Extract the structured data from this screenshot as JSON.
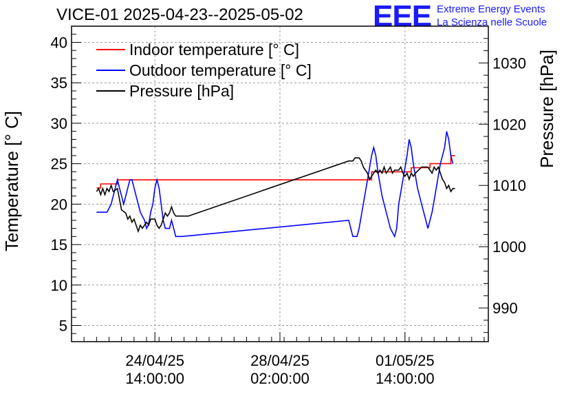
{
  "chart_data": {
    "type": "line",
    "title": "VICE-01 2025-04-23--2025-05-02",
    "logo": {
      "mark": "EEE",
      "line1": "Extreme Energy Events",
      "line2": "La Scienza nelle Scuole"
    },
    "ylabel_left": "Temperature [° C]",
    "ylabel_right": "Pressure [hPa]",
    "ylim_left": [
      3,
      42
    ],
    "ylim_right": [
      984.5,
      1036
    ],
    "xlim_hours": [
      0,
      200
    ],
    "grid": true,
    "legend_position": "top-left",
    "left_ticks": [
      5,
      10,
      15,
      20,
      25,
      30,
      35,
      40
    ],
    "right_ticks": [
      990,
      1000,
      1010,
      1020,
      1030
    ],
    "x_ticks": [
      {
        "hour": 40,
        "line1": "24/04/25",
        "line2": "14:00:00"
      },
      {
        "hour": 100,
        "line1": "28/04/25",
        "line2": "02:00:00"
      },
      {
        "hour": 160,
        "line1": "01/05/25",
        "line2": "14:00:00"
      }
    ],
    "colors": {
      "indoor": "#ff0000",
      "outdoor": "#0000ff",
      "pressure": "#000000",
      "grid": "#999999"
    },
    "series": [
      {
        "name": "Indoor temperature [° C]",
        "axis": "left",
        "color": "#ff0000",
        "points": [
          [
            12,
            22
          ],
          [
            14,
            22
          ],
          [
            14,
            22.5
          ],
          [
            22,
            22.5
          ],
          [
            22,
            23
          ],
          [
            130,
            23
          ],
          [
            144,
            23
          ],
          [
            144,
            24
          ],
          [
            163,
            24
          ],
          [
            163,
            24.5
          ],
          [
            172,
            24.5
          ],
          [
            172,
            25
          ],
          [
            182,
            25
          ],
          [
            182,
            26
          ],
          [
            184,
            26
          ]
        ]
      },
      {
        "name": "Outdoor temperature [° C]",
        "axis": "left",
        "color": "#0000ff",
        "points": [
          [
            12,
            19
          ],
          [
            17,
            19
          ],
          [
            19,
            20
          ],
          [
            20,
            21
          ],
          [
            21,
            22
          ],
          [
            22,
            23
          ],
          [
            23,
            22
          ],
          [
            24,
            21
          ],
          [
            25,
            20
          ],
          [
            26,
            21
          ],
          [
            27,
            22
          ],
          [
            28,
            23
          ],
          [
            29,
            23
          ],
          [
            30,
            22
          ],
          [
            31,
            21
          ],
          [
            32,
            20
          ],
          [
            33,
            19
          ],
          [
            35,
            18
          ],
          [
            36,
            17
          ],
          [
            37,
            17.5
          ],
          [
            38,
            19
          ],
          [
            39,
            20
          ],
          [
            40,
            22
          ],
          [
            41,
            23
          ],
          [
            42,
            22
          ],
          [
            43,
            20
          ],
          [
            44,
            18
          ],
          [
            45,
            17
          ],
          [
            47,
            17
          ],
          [
            48,
            18
          ],
          [
            49,
            17
          ],
          [
            50,
            16
          ],
          [
            53,
            16
          ],
          [
            133,
            18
          ],
          [
            135,
            16
          ],
          [
            137,
            16
          ],
          [
            138,
            17
          ],
          [
            140,
            20
          ],
          [
            142,
            23
          ],
          [
            144,
            26
          ],
          [
            145,
            27
          ],
          [
            146,
            26
          ],
          [
            147,
            24
          ],
          [
            149,
            21
          ],
          [
            151,
            19
          ],
          [
            152,
            18
          ],
          [
            153,
            17
          ],
          [
            155,
            16
          ],
          [
            156,
            17
          ],
          [
            157,
            20
          ],
          [
            159,
            23
          ],
          [
            161,
            26
          ],
          [
            162,
            28
          ],
          [
            163,
            27
          ],
          [
            164,
            25
          ],
          [
            166,
            22
          ],
          [
            168,
            20
          ],
          [
            170,
            18
          ],
          [
            171,
            17
          ],
          [
            173,
            19
          ],
          [
            175,
            22
          ],
          [
            177,
            25
          ],
          [
            179,
            27
          ],
          [
            180,
            29
          ],
          [
            181,
            28
          ],
          [
            182,
            26
          ],
          [
            183,
            25
          ]
        ]
      },
      {
        "name": "Pressure [hPa]",
        "axis": "right",
        "color": "#000000",
        "points": [
          [
            12,
            1009
          ],
          [
            13,
            1009.5
          ],
          [
            14,
            1008.5
          ],
          [
            15,
            1009.5
          ],
          [
            16,
            1008.5
          ],
          [
            17,
            1009.5
          ],
          [
            18,
            1009
          ],
          [
            19,
            1010
          ],
          [
            20,
            1009
          ],
          [
            22,
            1009.5
          ],
          [
            24,
            1006
          ],
          [
            26,
            1005.5
          ],
          [
            27,
            1004.5
          ],
          [
            28,
            1005
          ],
          [
            29,
            1004
          ],
          [
            30,
            1004.5
          ],
          [
            31,
            1003.5
          ],
          [
            32,
            1002.5
          ],
          [
            33,
            1003.5
          ],
          [
            34,
            1003
          ],
          [
            36,
            1004
          ],
          [
            37,
            1003.5
          ],
          [
            38,
            1004.5
          ],
          [
            40,
            1004.5
          ],
          [
            41,
            1003.5
          ],
          [
            42,
            1003
          ],
          [
            43,
            1003.5
          ],
          [
            44,
            1004.5
          ],
          [
            45,
            1005.5
          ],
          [
            46,
            1005
          ],
          [
            47,
            1005.5
          ],
          [
            48,
            1006.5
          ],
          [
            49,
            1005.5
          ],
          [
            50,
            1005
          ],
          [
            56,
            1005
          ],
          [
            133,
            1014
          ],
          [
            135,
            1014
          ],
          [
            136,
            1014.5
          ],
          [
            138,
            1014.5
          ],
          [
            139,
            1014
          ],
          [
            140,
            1013
          ],
          [
            141,
            1012.5
          ],
          [
            142,
            1012
          ],
          [
            143,
            1011
          ],
          [
            144,
            1011.5
          ],
          [
            145,
            1012
          ],
          [
            146,
            1012.5
          ],
          [
            147,
            1012
          ],
          [
            148,
            1012.5
          ],
          [
            149,
            1012
          ],
          [
            150,
            1013
          ],
          [
            151,
            1012
          ],
          [
            152,
            1012.5
          ],
          [
            153,
            1013
          ],
          [
            154,
            1012
          ],
          [
            155,
            1012.5
          ],
          [
            157,
            1012.5
          ],
          [
            158,
            1013
          ],
          [
            159,
            1012
          ],
          [
            160,
            1011.5
          ],
          [
            161,
            1012
          ],
          [
            162,
            1011
          ],
          [
            163,
            1012
          ],
          [
            164,
            1011.5
          ],
          [
            165,
            1012
          ],
          [
            168,
            1013
          ],
          [
            171,
            1013
          ],
          [
            172,
            1012.5
          ],
          [
            173,
            1012
          ],
          [
            174,
            1013
          ],
          [
            175,
            1012.5
          ],
          [
            176,
            1013
          ],
          [
            177,
            1012
          ],
          [
            178,
            1011
          ],
          [
            179,
            1010.5
          ],
          [
            180,
            1009.5
          ],
          [
            181,
            1010
          ],
          [
            182,
            1009
          ],
          [
            183,
            1009.5
          ],
          [
            184,
            1009.5
          ]
        ]
      }
    ]
  }
}
